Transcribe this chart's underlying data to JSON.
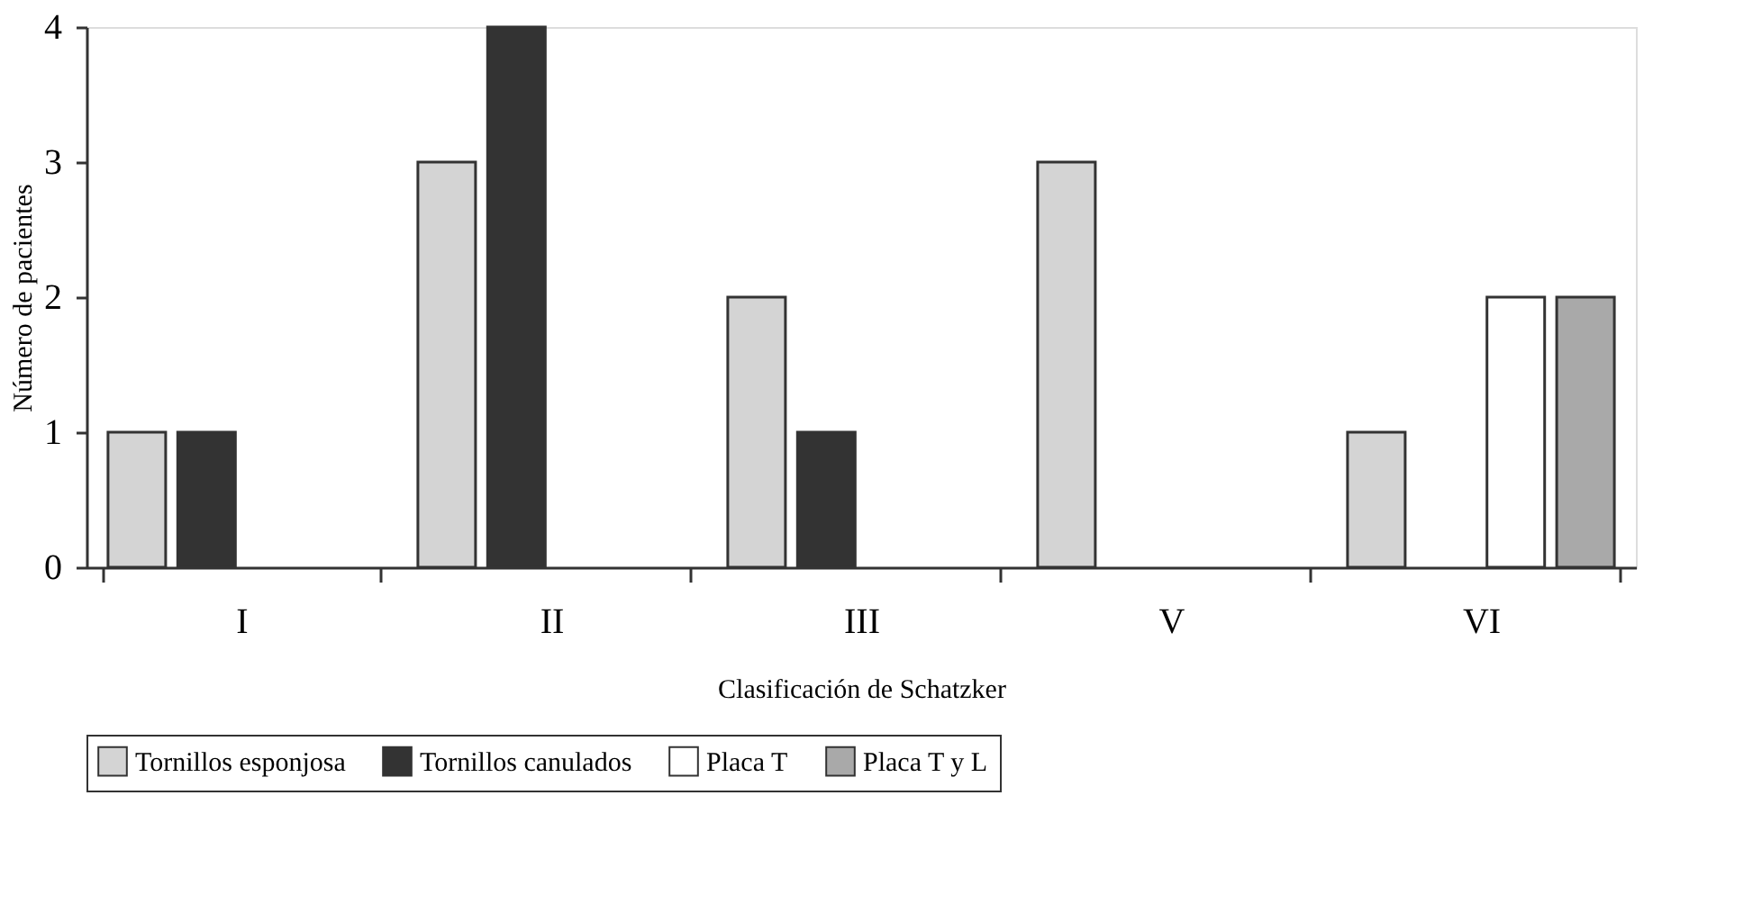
{
  "chart_data": {
    "type": "bar",
    "xlabel": "Clasificación de Schatzker",
    "ylabel": "Número de pacientes",
    "categories": [
      "I",
      "II",
      "III",
      "V",
      "VI"
    ],
    "series": [
      {
        "name": "Tornillos esponjosa",
        "color": "#d4d4d4",
        "values": [
          1,
          3,
          2,
          3,
          1
        ]
      },
      {
        "name": "Tornillos canulados",
        "color": "#333333",
        "values": [
          1,
          4,
          1,
          null,
          null
        ]
      },
      {
        "name": "Placa T",
        "color": "#ffffff",
        "values": [
          null,
          null,
          null,
          null,
          2
        ]
      },
      {
        "name": "Placa T y L",
        "color": "#a9a9a9",
        "values": [
          null,
          null,
          null,
          null,
          2
        ]
      }
    ],
    "ylim": [
      0,
      4
    ],
    "yticks": [
      0,
      1,
      2,
      3,
      4
    ],
    "grid": false,
    "legend": "bottom"
  }
}
